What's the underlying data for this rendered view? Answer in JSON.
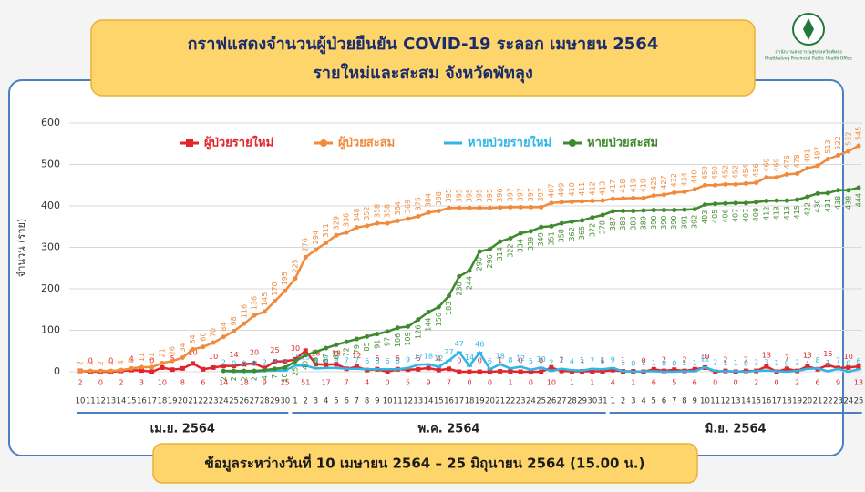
{
  "header": {
    "title_line1": "กราฟแสดงจำนวนผู้ป่วยยืนยัน COVID-19 ระลอก เมษายน 2564",
    "title_line2": "รายใหม่และสะสม จังหวัดพัทลุง",
    "logo_text_th": "สำนักงานสาธารณสุขจังหวัดพัทลุง",
    "logo_text_en": "Phatthalung Provincial Public Health Office"
  },
  "footer": "ข้อมูลระหว่างวันที่ 10 เมษายน 2564 – 25 มิถุนายน 2564 (15.00 น.)",
  "chart_data": {
    "type": "line",
    "y_label": "จำนวน (ราย)",
    "categories": [
      "10",
      "11",
      "12",
      "13",
      "14",
      "15",
      "16",
      "17",
      "18",
      "19",
      "20",
      "21",
      "22",
      "23",
      "24",
      "25",
      "26",
      "27",
      "28",
      "29",
      "30",
      "1",
      "2",
      "3",
      "4",
      "5",
      "6",
      "7",
      "8",
      "9",
      "10",
      "11",
      "12",
      "13",
      "14",
      "15",
      "16",
      "17",
      "18",
      "19",
      "20",
      "21",
      "22",
      "23",
      "24",
      "25",
      "26",
      "27",
      "28",
      "29",
      "30",
      "31",
      "1",
      "2",
      "3",
      "4",
      "5",
      "6",
      "7",
      "8",
      "9",
      "10",
      "11",
      "12",
      "13",
      "14",
      "15",
      "16",
      "17",
      "18",
      "19",
      "20",
      "21",
      "22",
      "23",
      "24",
      "25"
    ],
    "x_groups": [
      "เม.ย. 2564",
      "พ.ค. 2564",
      "มิ.ย. 2564"
    ],
    "ylim": [
      0,
      600
    ],
    "yticks": [
      0,
      100,
      200,
      300,
      400,
      500,
      600
    ],
    "legend": "top",
    "series": [
      {
        "name": "ผู้ป่วยรายใหม่",
        "color": "#e0262b",
        "marker": "square",
        "values": [
          2,
          0,
          0,
          0,
          2,
          4,
          3,
          0,
          10,
          5,
          8,
          20,
          6,
          10,
          14,
          14,
          18,
          20,
          9,
          25,
          25,
          30,
          51,
          18,
          17,
          18,
          7,
          12,
          4,
          6,
          0,
          6,
          5,
          6,
          9,
          4,
          7,
          0,
          0,
          0,
          0,
          1,
          1,
          0,
          0,
          0,
          10,
          2,
          1,
          1,
          1,
          1,
          4,
          1,
          1,
          0,
          6,
          2,
          5,
          2,
          6,
          10,
          0,
          2,
          0,
          2,
          2,
          13,
          0,
          7,
          2,
          13,
          6,
          16,
          9,
          10,
          13
        ]
      },
      {
        "name": "ผู้ป่วยสะสม",
        "color": "#f08a3c",
        "marker": "circle",
        "values": [
          2,
          2,
          2,
          2,
          4,
          8,
          11,
          11,
          21,
          26,
          34,
          54,
          60,
          70,
          84,
          98,
          116,
          136,
          145,
          170,
          195,
          225,
          276,
          294,
          311,
          329,
          336,
          348,
          352,
          358,
          358,
          364,
          369,
          375,
          384,
          388,
          395,
          395,
          395,
          395,
          395,
          396,
          397,
          397,
          397,
          397,
          407,
          409,
          410,
          411,
          412,
          413,
          417,
          418,
          419,
          419,
          425,
          427,
          432,
          434,
          440,
          450,
          450,
          452,
          452,
          454,
          456,
          469,
          469,
          476,
          478,
          491,
          497,
          513,
          522,
          532,
          545
        ]
      },
      {
        "name": "หายป่วยรายใหม่",
        "color": "#2fb6e6",
        "marker": "dash",
        "values": [
          null,
          null,
          null,
          null,
          null,
          null,
          null,
          null,
          null,
          null,
          null,
          null,
          null,
          null,
          2,
          0,
          0,
          0,
          2,
          3,
          3,
          15,
          15,
          8,
          9,
          9,
          7,
          7,
          6,
          6,
          6,
          6,
          9,
          17,
          18,
          12,
          27,
          47,
          14,
          46,
          6,
          18,
          8,
          12,
          5,
          10,
          2,
          7,
          4,
          3,
          7,
          6,
          9,
          1,
          0,
          1,
          1,
          0,
          0,
          1,
          1,
          11,
          2,
          1,
          1,
          0,
          2,
          3,
          1,
          0,
          2,
          7,
          8,
          1,
          7,
          0,
          6
        ]
      },
      {
        "name": "หายป่วยสะสม",
        "color": "#3f8a2e",
        "marker": "circle",
        "values": [
          null,
          null,
          null,
          null,
          null,
          null,
          null,
          null,
          null,
          null,
          null,
          null,
          null,
          null,
          2,
          2,
          2,
          2,
          4,
          7,
          10,
          25,
          40,
          48,
          57,
          65,
          72,
          79,
          85,
          91,
          97,
          106,
          109,
          126,
          144,
          156,
          183,
          230,
          244,
          290,
          296,
          314,
          322,
          334,
          339,
          349,
          351,
          358,
          362,
          365,
          372,
          378,
          387,
          388,
          388,
          389,
          390,
          390,
          390,
          391,
          392,
          403,
          405,
          406,
          407,
          407,
          409,
          412,
          413,
          413,
          415,
          422,
          430,
          431,
          438,
          438,
          444
        ]
      }
    ]
  }
}
